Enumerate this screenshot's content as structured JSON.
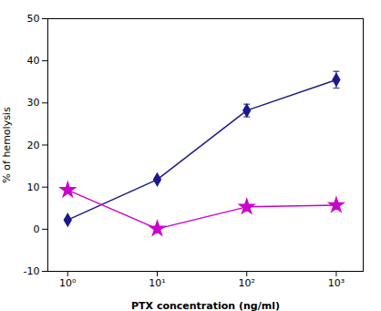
{
  "chart_data": {
    "type": "line",
    "xlabel": "PTX concentration (ng/ml)",
    "ylabel": "% of hemolysis",
    "x": [
      1,
      10,
      100,
      1000
    ],
    "series": [
      {
        "color": "#1a1a8c",
        "marker": "diamond",
        "values": [
          2.2,
          11.8,
          28.2,
          35.5
        ],
        "errors": [
          0.3,
          0.5,
          1.5,
          2.0
        ]
      },
      {
        "color": "#cc00cc",
        "marker": "star",
        "values": [
          9.3,
          0.1,
          5.3,
          5.7
        ],
        "errors": [
          0.4,
          0.2,
          0.4,
          0.3
        ]
      }
    ],
    "log": "x",
    "xlim": [
      0.6,
      2000
    ],
    "xticks": [
      {
        "value": 1,
        "label": "10⁰"
      },
      {
        "value": 10,
        "label": "10¹"
      },
      {
        "value": 100,
        "label": "10²"
      },
      {
        "value": 1000,
        "label": "10³"
      }
    ],
    "ylim": [
      -10,
      50
    ],
    "yticks": [
      -10,
      0,
      10,
      20,
      30,
      40,
      50
    ],
    "grid": false
  }
}
